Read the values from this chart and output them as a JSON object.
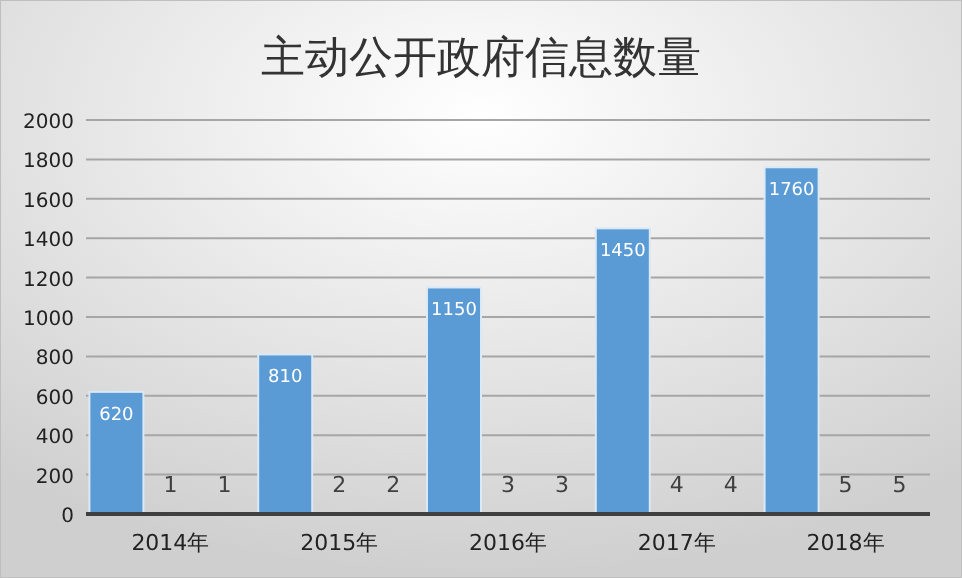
{
  "chart_data": {
    "type": "bar",
    "title": "主动公开政府信息数量",
    "categories": [
      "2014年",
      "2015年",
      "2016年",
      "2017年",
      "2018年"
    ],
    "series": [
      {
        "color": "#5b9bd5",
        "values": [
          620,
          810,
          1150,
          1450,
          1760
        ]
      },
      {
        "color": "#ed7d31",
        "values": [
          1,
          2,
          3,
          4,
          5
        ]
      },
      {
        "color": "#a5a5a5",
        "values": [
          1,
          2,
          3,
          4,
          5
        ]
      }
    ],
    "ylim": [
      0,
      2000
    ],
    "yticks": [
      0,
      200,
      400,
      600,
      800,
      1000,
      1200,
      1400,
      1600,
      1800,
      2000
    ],
    "grid": "y",
    "data_labels": true
  }
}
